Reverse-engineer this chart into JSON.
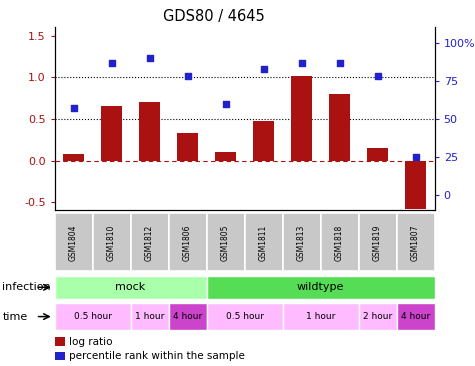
{
  "title": "GDS80 / 4645",
  "samples": [
    "GSM1804",
    "GSM1810",
    "GSM1812",
    "GSM1806",
    "GSM1805",
    "GSM1811",
    "GSM1813",
    "GSM1818",
    "GSM1819",
    "GSM1807"
  ],
  "log_ratio": [
    0.08,
    0.65,
    0.7,
    0.33,
    0.1,
    0.48,
    1.02,
    0.8,
    0.15,
    -0.58
  ],
  "percentile_right": [
    57,
    87,
    90,
    78,
    60,
    83,
    87,
    87,
    78,
    25
  ],
  "bar_color": "#aa1111",
  "dot_color": "#2222cc",
  "ylim_left": [
    -0.6,
    1.6
  ],
  "ylim_right": [
    -10,
    110
  ],
  "yticks_left": [
    -0.5,
    0.0,
    0.5,
    1.0,
    1.5
  ],
  "yticks_right": [
    0,
    25,
    50,
    75,
    100
  ],
  "ytick_labels_right": [
    "0",
    "25",
    "50",
    "75",
    "100%"
  ],
  "hlines": [
    0.5,
    1.0
  ],
  "zero_line": 0.0,
  "infection_groups": [
    {
      "label": "mock",
      "start": 0,
      "end": 4,
      "color": "#aaffaa"
    },
    {
      "label": "wildtype",
      "start": 4,
      "end": 10,
      "color": "#55dd55"
    }
  ],
  "time_groups": [
    {
      "label": "0.5 hour",
      "start": 0,
      "end": 2,
      "color": "#ffbbff"
    },
    {
      "label": "1 hour",
      "start": 2,
      "end": 3,
      "color": "#ffbbff"
    },
    {
      "label": "4 hour",
      "start": 3,
      "end": 4,
      "color": "#cc44cc"
    },
    {
      "label": "0.5 hour",
      "start": 4,
      "end": 6,
      "color": "#ffbbff"
    },
    {
      "label": "1 hour",
      "start": 6,
      "end": 8,
      "color": "#ffbbff"
    },
    {
      "label": "2 hour",
      "start": 8,
      "end": 9,
      "color": "#ffbbff"
    },
    {
      "label": "4 hour",
      "start": 9,
      "end": 10,
      "color": "#cc44cc"
    }
  ],
  "legend_items": [
    {
      "label": "log ratio",
      "color": "#aa1111"
    },
    {
      "label": "percentile rank within the sample",
      "color": "#2222cc"
    }
  ],
  "infection_label": "infection",
  "time_label": "time",
  "bg_color": "#ffffff",
  "sample_box_color": "#c8c8c8"
}
